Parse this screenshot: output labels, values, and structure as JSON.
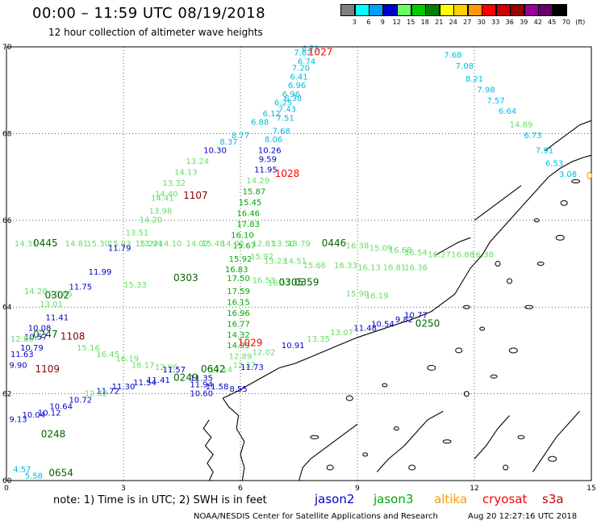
{
  "header": {
    "title": "00:00 – 11:59 UTC 08/19/2018",
    "subtitle": "12 hour collection of altimeter wave heights"
  },
  "legend": {
    "colors": [
      "#808080",
      "#00ffff",
      "#00a0ff",
      "#0000cc",
      "#66ff66",
      "#00cc00",
      "#008000",
      "#ffff00",
      "#ffd000",
      "#ff9900",
      "#ff0000",
      "#cc0000",
      "#990000",
      "#990099",
      "#660066",
      "#000000"
    ],
    "labels": [
      "3",
      "6",
      "9",
      "12",
      "15",
      "18",
      "21",
      "24",
      "27",
      "30",
      "33",
      "36",
      "39",
      "42",
      "45",
      "70",
      "(ft)"
    ]
  },
  "axes": {
    "x_ticks": [
      "0",
      "3",
      "6",
      "9",
      "12",
      "15"
    ],
    "y_ticks": [
      "70",
      "68",
      "66",
      "64",
      "62",
      "60"
    ]
  },
  "colors": {
    "jason2": "#0000cc",
    "jason3": "#00aa00",
    "altika": "#ff9900",
    "cryosat": "#ff0000",
    "s3a": "#cc0000",
    "cyan": "#00bbdd",
    "lightgreen": "#66dd66",
    "darkgreen": "#006600",
    "maroon": "#880000",
    "coast": "#000000"
  },
  "chart_data": {
    "type": "scatter",
    "title": "00:00 – 11:59 UTC 08/19/2018",
    "subtitle": "12 hour collection of altimeter wave heights",
    "xlim": [
      0,
      15
    ],
    "ylim": [
      60,
      70
    ],
    "units": "ft",
    "observations": [
      {
        "x": 7.8,
        "y": 69.9,
        "v": "6.73",
        "c": "cyan"
      },
      {
        "x": 7.6,
        "y": 69.8,
        "v": "7.62",
        "c": "cyan"
      },
      {
        "x": 7.7,
        "y": 69.6,
        "v": "6.74",
        "c": "cyan"
      },
      {
        "x": 7.55,
        "y": 69.45,
        "v": "7.20",
        "c": "cyan"
      },
      {
        "x": 7.5,
        "y": 69.25,
        "v": "6.41",
        "c": "cyan"
      },
      {
        "x": 7.45,
        "y": 69.05,
        "v": "6.96",
        "c": "cyan"
      },
      {
        "x": 7.3,
        "y": 68.85,
        "v": "6.96",
        "c": "cyan"
      },
      {
        "x": 7.35,
        "y": 68.75,
        "v": "6.38",
        "c": "cyan"
      },
      {
        "x": 7.1,
        "y": 68.65,
        "v": "6.25",
        "c": "cyan"
      },
      {
        "x": 7.2,
        "y": 68.5,
        "v": "7.43",
        "c": "cyan"
      },
      {
        "x": 6.8,
        "y": 68.4,
        "v": "6.12",
        "c": "cyan"
      },
      {
        "x": 7.15,
        "y": 68.3,
        "v": "7.51",
        "c": "cyan"
      },
      {
        "x": 6.5,
        "y": 68.2,
        "v": "6.88",
        "c": "cyan"
      },
      {
        "x": 7.05,
        "y": 68.0,
        "v": "7.68",
        "c": "cyan"
      },
      {
        "x": 6.0,
        "y": 67.9,
        "v": "8.77",
        "c": "cyan"
      },
      {
        "x": 6.85,
        "y": 67.8,
        "v": "8.06",
        "c": "cyan"
      },
      {
        "x": 5.7,
        "y": 67.75,
        "v": "8.37",
        "c": "cyan"
      },
      {
        "x": 5.35,
        "y": 67.55,
        "v": "10.30",
        "c": "jason2"
      },
      {
        "x": 6.75,
        "y": 67.55,
        "v": "10.26",
        "c": "jason2"
      },
      {
        "x": 6.7,
        "y": 67.35,
        "v": "9.59",
        "c": "jason2"
      },
      {
        "x": 6.65,
        "y": 67.1,
        "v": "11.95",
        "c": "jason2"
      },
      {
        "x": 4.9,
        "y": 67.3,
        "v": "13.24",
        "c": "lightgreen"
      },
      {
        "x": 4.6,
        "y": 67.05,
        "v": "14.13",
        "c": "lightgreen"
      },
      {
        "x": 4.3,
        "y": 66.8,
        "v": "13.32",
        "c": "lightgreen"
      },
      {
        "x": 6.45,
        "y": 66.85,
        "v": "14.29",
        "c": "lightgreen"
      },
      {
        "x": 4.1,
        "y": 66.55,
        "v": "14.40",
        "c": "lightgreen"
      },
      {
        "x": 4.0,
        "y": 66.45,
        "v": "14.41",
        "c": "lightgreen"
      },
      {
        "x": 3.95,
        "y": 66.15,
        "v": "13.98",
        "c": "lightgreen"
      },
      {
        "x": 3.7,
        "y": 65.95,
        "v": "14.20",
        "c": "lightgreen"
      },
      {
        "x": 3.35,
        "y": 65.65,
        "v": "13.51",
        "c": "lightgreen"
      },
      {
        "x": 3.7,
        "y": 65.4,
        "v": "13.94",
        "c": "lightgreen"
      },
      {
        "x": 6.35,
        "y": 66.6,
        "v": "15.87",
        "c": "jason3"
      },
      {
        "x": 6.25,
        "y": 66.35,
        "v": "15.45",
        "c": "jason3"
      },
      {
        "x": 6.2,
        "y": 66.1,
        "v": "16.46",
        "c": "jason3"
      },
      {
        "x": 6.2,
        "y": 65.85,
        "v": "17.83",
        "c": "jason3"
      },
      {
        "x": 6.05,
        "y": 65.6,
        "v": "16.10",
        "c": "jason3"
      },
      {
        "x": 6.1,
        "y": 65.35,
        "v": "15.67",
        "c": "jason3"
      },
      {
        "x": 6.0,
        "y": 65.05,
        "v": "15.92",
        "c": "jason3"
      },
      {
        "x": 5.9,
        "y": 64.8,
        "v": "16.83",
        "c": "jason3"
      },
      {
        "x": 5.95,
        "y": 64.6,
        "v": "17.50",
        "c": "jason3"
      },
      {
        "x": 5.95,
        "y": 64.3,
        "v": "17.59",
        "c": "jason3"
      },
      {
        "x": 5.95,
        "y": 64.05,
        "v": "16.15",
        "c": "jason3"
      },
      {
        "x": 5.95,
        "y": 63.8,
        "v": "16.96",
        "c": "jason3"
      },
      {
        "x": 5.95,
        "y": 63.55,
        "v": "16.77",
        "c": "jason3"
      },
      {
        "x": 5.95,
        "y": 63.3,
        "v": "14.32",
        "c": "jason3"
      },
      {
        "x": 5.95,
        "y": 63.05,
        "v": "14.99",
        "c": "jason3"
      },
      {
        "x": 0.5,
        "y": 65.4,
        "v": "14.31",
        "c": "lightgreen"
      },
      {
        "x": 1.8,
        "y": 65.4,
        "v": "14.81",
        "c": "lightgreen"
      },
      {
        "x": 2.35,
        "y": 65.4,
        "v": "15.30",
        "c": "lightgreen"
      },
      {
        "x": 2.9,
        "y": 65.4,
        "v": "15.83",
        "c": "lightgreen"
      },
      {
        "x": 3.6,
        "y": 65.4,
        "v": "15.22",
        "c": "lightgreen"
      },
      {
        "x": 4.2,
        "y": 65.4,
        "v": "14.10",
        "c": "lightgreen"
      },
      {
        "x": 4.9,
        "y": 65.4,
        "v": "14.07",
        "c": "lightgreen"
      },
      {
        "x": 5.3,
        "y": 65.4,
        "v": "15.48",
        "c": "lightgreen"
      },
      {
        "x": 5.8,
        "y": 65.4,
        "v": "14.03",
        "c": "lightgreen"
      },
      {
        "x": 6.6,
        "y": 65.4,
        "v": "12.81",
        "c": "lightgreen"
      },
      {
        "x": 7.1,
        "y": 65.4,
        "v": "13.50",
        "c": "lightgreen"
      },
      {
        "x": 7.5,
        "y": 65.4,
        "v": "13.79",
        "c": "lightgreen"
      },
      {
        "x": 9.0,
        "y": 65.35,
        "v": "16.38",
        "c": "lightgreen"
      },
      {
        "x": 9.6,
        "y": 65.3,
        "v": "15.09",
        "c": "lightgreen"
      },
      {
        "x": 10.1,
        "y": 65.25,
        "v": "16.68",
        "c": "lightgreen"
      },
      {
        "x": 10.5,
        "y": 65.2,
        "v": "16.54",
        "c": "lightgreen"
      },
      {
        "x": 11.1,
        "y": 65.15,
        "v": "16.27",
        "c": "lightgreen"
      },
      {
        "x": 11.7,
        "y": 65.15,
        "v": "16.86",
        "c": "lightgreen"
      },
      {
        "x": 12.2,
        "y": 65.15,
        "v": "16.38",
        "c": "lightgreen"
      },
      {
        "x": 2.9,
        "y": 65.3,
        "v": "11.79",
        "c": "jason2"
      },
      {
        "x": 2.4,
        "y": 64.75,
        "v": "11.99",
        "c": "jason2"
      },
      {
        "x": 1.9,
        "y": 64.4,
        "v": "11.75",
        "c": "jason2"
      },
      {
        "x": 3.3,
        "y": 64.45,
        "v": "15.33",
        "c": "lightgreen"
      },
      {
        "x": 1.4,
        "y": 64.25,
        "v": "13.85",
        "c": "lightgreen"
      },
      {
        "x": 1.15,
        "y": 64.0,
        "v": "13.01",
        "c": "lightgreen"
      },
      {
        "x": 0.75,
        "y": 64.3,
        "v": "14.28",
        "c": "lightgreen"
      },
      {
        "x": 6.55,
        "y": 65.1,
        "v": "15.92",
        "c": "lightgreen"
      },
      {
        "x": 6.9,
        "y": 65.0,
        "v": "13.23",
        "c": "lightgreen"
      },
      {
        "x": 7.4,
        "y": 65.0,
        "v": "14.51",
        "c": "lightgreen"
      },
      {
        "x": 7.9,
        "y": 64.9,
        "v": "15.66",
        "c": "lightgreen"
      },
      {
        "x": 8.7,
        "y": 64.9,
        "v": "16.33",
        "c": "lightgreen"
      },
      {
        "x": 9.3,
        "y": 64.85,
        "v": "16.13",
        "c": "lightgreen"
      },
      {
        "x": 9.95,
        "y": 64.85,
        "v": "16.81",
        "c": "lightgreen"
      },
      {
        "x": 10.5,
        "y": 64.85,
        "v": "16.36",
        "c": "lightgreen"
      },
      {
        "x": 6.6,
        "y": 64.55,
        "v": "16.53",
        "c": "lightgreen"
      },
      {
        "x": 7.0,
        "y": 64.5,
        "v": "16.57",
        "c": "lightgreen"
      },
      {
        "x": 9.0,
        "y": 64.25,
        "v": "15.90",
        "c": "lightgreen"
      },
      {
        "x": 9.5,
        "y": 64.2,
        "v": "16.19",
        "c": "lightgreen"
      },
      {
        "x": 1.3,
        "y": 63.7,
        "v": "11.41",
        "c": "jason2"
      },
      {
        "x": 0.85,
        "y": 63.45,
        "v": "10.08",
        "c": "jason2"
      },
      {
        "x": 0.75,
        "y": 63.25,
        "v": "10.57",
        "c": "jason2"
      },
      {
        "x": 0.65,
        "y": 63.0,
        "v": "10.79",
        "c": "jason2"
      },
      {
        "x": 0.4,
        "y": 62.85,
        "v": "11.63",
        "c": "jason2"
      },
      {
        "x": 0.3,
        "y": 62.6,
        "v": "9.90",
        "c": "jason2"
      },
      {
        "x": 0.4,
        "y": 63.2,
        "v": "12.86",
        "c": "lightgreen"
      },
      {
        "x": 2.1,
        "y": 63.0,
        "v": "15.16",
        "c": "lightgreen"
      },
      {
        "x": 2.6,
        "y": 62.85,
        "v": "16.45",
        "c": "lightgreen"
      },
      {
        "x": 3.1,
        "y": 62.75,
        "v": "16.19",
        "c": "lightgreen"
      },
      {
        "x": 3.5,
        "y": 62.6,
        "v": "16.17",
        "c": "lightgreen"
      },
      {
        "x": 4.1,
        "y": 62.55,
        "v": "12.96",
        "c": "lightgreen"
      },
      {
        "x": 5.5,
        "y": 62.5,
        "v": "12.14",
        "c": "lightgreen"
      },
      {
        "x": 6.1,
        "y": 62.6,
        "v": "12.37",
        "c": "lightgreen"
      },
      {
        "x": 6.6,
        "y": 62.9,
        "v": "12.02",
        "c": "lightgreen"
      },
      {
        "x": 6.0,
        "y": 62.8,
        "v": "12.89",
        "c": "lightgreen"
      },
      {
        "x": 6.3,
        "y": 62.55,
        "v": "11.73",
        "c": "jason2"
      },
      {
        "x": 7.35,
        "y": 63.05,
        "v": "10.91",
        "c": "jason2"
      },
      {
        "x": 8.0,
        "y": 63.2,
        "v": "13.35",
        "c": "lightgreen"
      },
      {
        "x": 8.6,
        "y": 63.35,
        "v": "13.07",
        "c": "lightgreen"
      },
      {
        "x": 9.2,
        "y": 63.45,
        "v": "11.48",
        "c": "jason2"
      },
      {
        "x": 9.65,
        "y": 63.55,
        "v": "10.54",
        "c": "jason2"
      },
      {
        "x": 10.2,
        "y": 63.65,
        "v": "9.82",
        "c": "jason2"
      },
      {
        "x": 10.5,
        "y": 63.75,
        "v": "10.77",
        "c": "jason2"
      },
      {
        "x": 4.3,
        "y": 62.5,
        "v": "11.57",
        "c": "jason2"
      },
      {
        "x": 3.55,
        "y": 62.2,
        "v": "11.54",
        "c": "jason2"
      },
      {
        "x": 3.0,
        "y": 62.1,
        "v": "11.30",
        "c": "jason2"
      },
      {
        "x": 2.6,
        "y": 62.0,
        "v": "11.72",
        "c": "jason2"
      },
      {
        "x": 3.9,
        "y": 62.25,
        "v": "11.41",
        "c": "jason2"
      },
      {
        "x": 2.3,
        "y": 61.95,
        "v": "12.32",
        "c": "lightgreen"
      },
      {
        "x": 1.9,
        "y": 61.8,
        "v": "10.72",
        "c": "jason2"
      },
      {
        "x": 1.4,
        "y": 61.65,
        "v": "10.64",
        "c": "jason2"
      },
      {
        "x": 1.1,
        "y": 61.5,
        "v": "10.12",
        "c": "jason2"
      },
      {
        "x": 0.7,
        "y": 61.45,
        "v": "10.04",
        "c": "jason2"
      },
      {
        "x": 0.3,
        "y": 61.35,
        "v": "9.13",
        "c": "jason2"
      },
      {
        "x": 5.0,
        "y": 62.15,
        "v": "11.94",
        "c": "jason2"
      },
      {
        "x": 5.4,
        "y": 62.1,
        "v": "11.58",
        "c": "jason2"
      },
      {
        "x": 5.95,
        "y": 62.05,
        "v": "8.55",
        "c": "jason2"
      },
      {
        "x": 5.0,
        "y": 61.95,
        "v": "10.60",
        "c": "jason2"
      },
      {
        "x": 5.0,
        "y": 62.3,
        "v": "11.35",
        "c": "jason2"
      },
      {
        "x": 0.4,
        "y": 60.2,
        "v": "4.57",
        "c": "cyan"
      },
      {
        "x": 0.7,
        "y": 60.05,
        "v": "5.58",
        "c": "cyan"
      },
      {
        "x": 11.45,
        "y": 69.75,
        "v": "7.68",
        "c": "cyan"
      },
      {
        "x": 11.75,
        "y": 69.5,
        "v": "7.08",
        "c": "cyan"
      },
      {
        "x": 12.0,
        "y": 69.2,
        "v": "8.21",
        "c": "cyan"
      },
      {
        "x": 12.3,
        "y": 68.95,
        "v": "7.98",
        "c": "cyan"
      },
      {
        "x": 12.55,
        "y": 68.7,
        "v": "7.57",
        "c": "cyan"
      },
      {
        "x": 12.85,
        "y": 68.45,
        "v": "6.64",
        "c": "cyan"
      },
      {
        "x": 13.2,
        "y": 68.15,
        "v": "14.69",
        "c": "lightgreen"
      },
      {
        "x": 13.5,
        "y": 67.9,
        "v": "6.73",
        "c": "cyan"
      },
      {
        "x": 13.8,
        "y": 67.55,
        "v": "7.91",
        "c": "cyan"
      },
      {
        "x": 14.05,
        "y": 67.25,
        "v": "6.53",
        "c": "cyan"
      },
      {
        "x": 14.4,
        "y": 67.0,
        "v": "3.08",
        "c": "cyan"
      }
    ],
    "time_labels": [
      {
        "x": 8.05,
        "y": 69.8,
        "t": "1027",
        "c": "cryosat"
      },
      {
        "x": 7.2,
        "y": 67.0,
        "t": "1028",
        "c": "cryosat"
      },
      {
        "x": 6.25,
        "y": 63.1,
        "t": "1029",
        "c": "cryosat"
      },
      {
        "x": 4.85,
        "y": 66.5,
        "t": "1107",
        "c": "maroon"
      },
      {
        "x": 1.7,
        "y": 63.25,
        "t": "1108",
        "c": "maroon"
      },
      {
        "x": 1.05,
        "y": 62.5,
        "t": "1109",
        "c": "maroon"
      },
      {
        "x": 1.0,
        "y": 65.4,
        "t": "0445",
        "c": "darkgreen"
      },
      {
        "x": 8.4,
        "y": 65.4,
        "t": "0446",
        "c": "darkgreen"
      },
      {
        "x": 1.3,
        "y": 64.2,
        "t": "0302",
        "c": "darkgreen"
      },
      {
        "x": 4.6,
        "y": 64.6,
        "t": "0303",
        "c": "darkgreen"
      },
      {
        "x": 7.3,
        "y": 64.5,
        "t": "0305",
        "c": "darkgreen"
      },
      {
        "x": 7.7,
        "y": 64.5,
        "t": "0359",
        "c": "darkgreen"
      },
      {
        "x": 1.0,
        "y": 63.3,
        "t": "0247",
        "c": "darkgreen"
      },
      {
        "x": 4.6,
        "y": 62.3,
        "t": "0249",
        "c": "darkgreen"
      },
      {
        "x": 5.3,
        "y": 62.5,
        "t": "0642",
        "c": "darkgreen"
      },
      {
        "x": 10.8,
        "y": 63.55,
        "t": "0250",
        "c": "darkgreen"
      },
      {
        "x": 1.2,
        "y": 61.0,
        "t": "0248",
        "c": "darkgreen"
      },
      {
        "x": 1.4,
        "y": 60.1,
        "t": "0654",
        "c": "darkgreen"
      },
      {
        "x": 14.95,
        "y": 66.95,
        "t": "0",
        "c": "altika"
      }
    ]
  },
  "footer": {
    "note": "note:  1) Time is in UTC;  2) SWH is in feet",
    "satellites": [
      {
        "label": "jason2",
        "color": "#0000cc"
      },
      {
        "label": "jason3",
        "color": "#00aa00"
      },
      {
        "label": "altika",
        "color": "#ff9900"
      },
      {
        "label": "cryosat",
        "color": "#ff0000"
      },
      {
        "label": "s3a",
        "color": "#cc0000"
      }
    ],
    "credit": "NOAA/NESDIS Center for Satellite Applications and Research",
    "timestamp": "Aug 20 12:27:16 UTC 2018"
  }
}
